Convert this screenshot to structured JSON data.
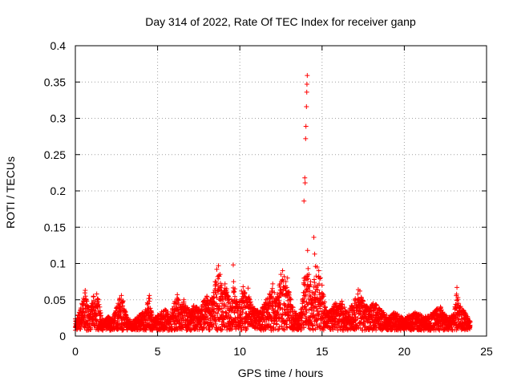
{
  "colors": {
    "series": "#ff0000",
    "grid": "#a0a0a0",
    "axis": "#000000",
    "background": "#ffffff"
  },
  "chart_data": {
    "type": "scatter",
    "title": "Day 314 of 2022, Rate Of TEC Index for receiver ganp",
    "xlabel": "GPS time / hours",
    "ylabel": "ROTI / TECUs",
    "xlim": [
      0,
      25
    ],
    "ylim": [
      0,
      0.4
    ],
    "xticks": [
      0,
      5,
      10,
      15,
      20,
      25
    ],
    "xtick_labels": [
      "0",
      "5",
      "10",
      "15",
      "20",
      "25"
    ],
    "yticks": [
      0,
      0.05,
      0.1,
      0.15,
      0.2,
      0.25,
      0.3,
      0.35,
      0.4
    ],
    "ytick_labels": [
      "0",
      "0.05",
      "0.1",
      "0.15",
      "0.2",
      "0.25",
      "0.3",
      "0.35",
      "0.4"
    ],
    "grid": true,
    "marker": "+",
    "series": [
      {
        "name": "ROTI",
        "points": [
          [
            0.05,
            0.012
          ],
          [
            0.15,
            0.025
          ],
          [
            0.3,
            0.035
          ],
          [
            0.4,
            0.045
          ],
          [
            0.5,
            0.052
          ],
          [
            0.6,
            0.063
          ],
          [
            0.7,
            0.048
          ],
          [
            0.8,
            0.04
          ],
          [
            0.9,
            0.03
          ],
          [
            1.0,
            0.045
          ],
          [
            1.1,
            0.055
          ],
          [
            1.2,
            0.042
          ],
          [
            1.3,
            0.058
          ],
          [
            1.4,
            0.05
          ],
          [
            1.5,
            0.035
          ],
          [
            1.6,
            0.02
          ],
          [
            1.8,
            0.015
          ],
          [
            2.0,
            0.025
          ],
          [
            2.2,
            0.018
          ],
          [
            2.4,
            0.03
          ],
          [
            2.6,
            0.045
          ],
          [
            2.7,
            0.052
          ],
          [
            2.8,
            0.056
          ],
          [
            2.9,
            0.048
          ],
          [
            3.0,
            0.035
          ],
          [
            3.2,
            0.02
          ],
          [
            3.5,
            0.015
          ],
          [
            3.8,
            0.022
          ],
          [
            4.0,
            0.03
          ],
          [
            4.2,
            0.028
          ],
          [
            4.5,
            0.056
          ],
          [
            4.6,
            0.035
          ],
          [
            4.8,
            0.02
          ],
          [
            5.0,
            0.025
          ],
          [
            5.2,
            0.03
          ],
          [
            5.5,
            0.035
          ],
          [
            5.8,
            0.025
          ],
          [
            6.0,
            0.045
          ],
          [
            6.2,
            0.057
          ],
          [
            6.4,
            0.04
          ],
          [
            6.6,
            0.05
          ],
          [
            6.8,
            0.038
          ],
          [
            7.0,
            0.03
          ],
          [
            7.2,
            0.042
          ],
          [
            7.5,
            0.035
          ],
          [
            7.8,
            0.048
          ],
          [
            8.0,
            0.055
          ],
          [
            8.2,
            0.05
          ],
          [
            8.4,
            0.06
          ],
          [
            8.5,
            0.075
          ],
          [
            8.6,
            0.092
          ],
          [
            8.7,
            0.097
          ],
          [
            8.8,
            0.085
          ],
          [
            8.9,
            0.07
          ],
          [
            9.0,
            0.06
          ],
          [
            9.1,
            0.072
          ],
          [
            9.2,
            0.065
          ],
          [
            9.3,
            0.055
          ],
          [
            9.4,
            0.045
          ],
          [
            9.5,
            0.05
          ],
          [
            9.6,
            0.098
          ],
          [
            9.7,
            0.065
          ],
          [
            9.8,
            0.05
          ],
          [
            9.9,
            0.04
          ],
          [
            10.0,
            0.048
          ],
          [
            10.1,
            0.062
          ],
          [
            10.2,
            0.068
          ],
          [
            10.3,
            0.06
          ],
          [
            10.4,
            0.052
          ],
          [
            10.5,
            0.066
          ],
          [
            10.6,
            0.05
          ],
          [
            10.8,
            0.04
          ],
          [
            11.0,
            0.035
          ],
          [
            11.2,
            0.03
          ],
          [
            11.4,
            0.038
          ],
          [
            11.6,
            0.05
          ],
          [
            11.8,
            0.058
          ],
          [
            12.0,
            0.072
          ],
          [
            12.1,
            0.06
          ],
          [
            12.2,
            0.05
          ],
          [
            12.4,
            0.07
          ],
          [
            12.5,
            0.085
          ],
          [
            12.6,
            0.09
          ],
          [
            12.7,
            0.082
          ],
          [
            12.8,
            0.075
          ],
          [
            12.9,
            0.08
          ],
          [
            13.0,
            0.06
          ],
          [
            13.1,
            0.05
          ],
          [
            13.2,
            0.04
          ],
          [
            13.4,
            0.03
          ],
          [
            13.5,
            0.025
          ],
          [
            13.6,
            0.028
          ],
          [
            13.7,
            0.032
          ],
          [
            13.8,
            0.045
          ],
          [
            13.9,
            0.186
          ],
          [
            13.95,
            0.218
          ],
          [
            13.97,
            0.211
          ],
          [
            14.0,
            0.272
          ],
          [
            14.02,
            0.289
          ],
          [
            14.05,
            0.316
          ],
          [
            14.07,
            0.336
          ],
          [
            14.08,
            0.347
          ],
          [
            14.1,
            0.359
          ],
          [
            14.12,
            0.118
          ],
          [
            14.15,
            0.093
          ],
          [
            14.2,
            0.085
          ],
          [
            14.3,
            0.075
          ],
          [
            14.4,
            0.06
          ],
          [
            14.5,
            0.136
          ],
          [
            14.55,
            0.113
          ],
          [
            14.6,
            0.096
          ],
          [
            14.7,
            0.095
          ],
          [
            14.8,
            0.09
          ],
          [
            14.9,
            0.08
          ],
          [
            15.0,
            0.07
          ],
          [
            15.1,
            0.055
          ],
          [
            15.2,
            0.04
          ],
          [
            15.4,
            0.03
          ],
          [
            15.6,
            0.035
          ],
          [
            15.8,
            0.045
          ],
          [
            16.0,
            0.04
          ],
          [
            16.2,
            0.048
          ],
          [
            16.4,
            0.035
          ],
          [
            16.6,
            0.03
          ],
          [
            16.8,
            0.042
          ],
          [
            17.0,
            0.05
          ],
          [
            17.2,
            0.064
          ],
          [
            17.3,
            0.062
          ],
          [
            17.5,
            0.048
          ],
          [
            17.7,
            0.04
          ],
          [
            17.9,
            0.038
          ],
          [
            18.1,
            0.045
          ],
          [
            18.3,
            0.043
          ],
          [
            18.5,
            0.036
          ],
          [
            18.7,
            0.03
          ],
          [
            18.9,
            0.025
          ],
          [
            19.1,
            0.022
          ],
          [
            19.3,
            0.03
          ],
          [
            19.5,
            0.028
          ],
          [
            19.7,
            0.025
          ],
          [
            20.0,
            0.02
          ],
          [
            20.3,
            0.025
          ],
          [
            20.6,
            0.03
          ],
          [
            20.9,
            0.028
          ],
          [
            21.2,
            0.022
          ],
          [
            21.5,
            0.025
          ],
          [
            21.8,
            0.03
          ],
          [
            22.0,
            0.035
          ],
          [
            22.2,
            0.04
          ],
          [
            22.3,
            0.033
          ],
          [
            22.5,
            0.025
          ],
          [
            22.8,
            0.02
          ],
          [
            23.0,
            0.03
          ],
          [
            23.1,
            0.04
          ],
          [
            23.2,
            0.067
          ],
          [
            23.3,
            0.045
          ],
          [
            23.5,
            0.035
          ],
          [
            23.7,
            0.03
          ],
          [
            23.9,
            0.02
          ],
          [
            24.0,
            0.015
          ]
        ]
      }
    ]
  }
}
